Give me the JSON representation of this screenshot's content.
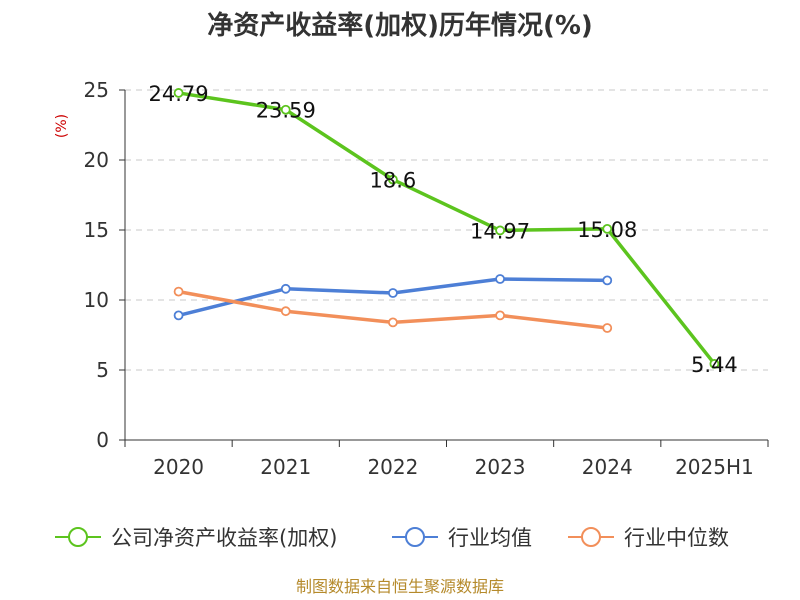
{
  "chart_data": {
    "type": "line",
    "title": "净资产收益率(加权)历年情况(%)",
    "ylabel": "(%)",
    "categories": [
      "2020",
      "2021",
      "2022",
      "2023",
      "2024",
      "2025H1"
    ],
    "yticks": [
      "0",
      "5",
      "10",
      "15",
      "20",
      "25"
    ],
    "ylim": [
      0,
      25
    ],
    "grid": true,
    "legend_position": "bottom",
    "series": [
      {
        "name": "公司净资产收益率(加权)",
        "color": "#5cc41e",
        "values": [
          24.79,
          23.59,
          18.6,
          14.97,
          15.08,
          5.44
        ],
        "labels": [
          "24.79",
          "23.59",
          "18.6",
          "14.97",
          "15.08",
          "5.44"
        ]
      },
      {
        "name": "行业均值",
        "color": "#4d7fd6",
        "values": [
          8.9,
          10.8,
          10.5,
          11.5,
          11.4,
          null
        ]
      },
      {
        "name": "行业中位数",
        "color": "#f28f5a",
        "values": [
          10.6,
          9.2,
          8.4,
          8.9,
          8.0,
          null
        ]
      }
    ]
  },
  "footer": {
    "source": "制图数据来自恒生聚源数据库"
  }
}
